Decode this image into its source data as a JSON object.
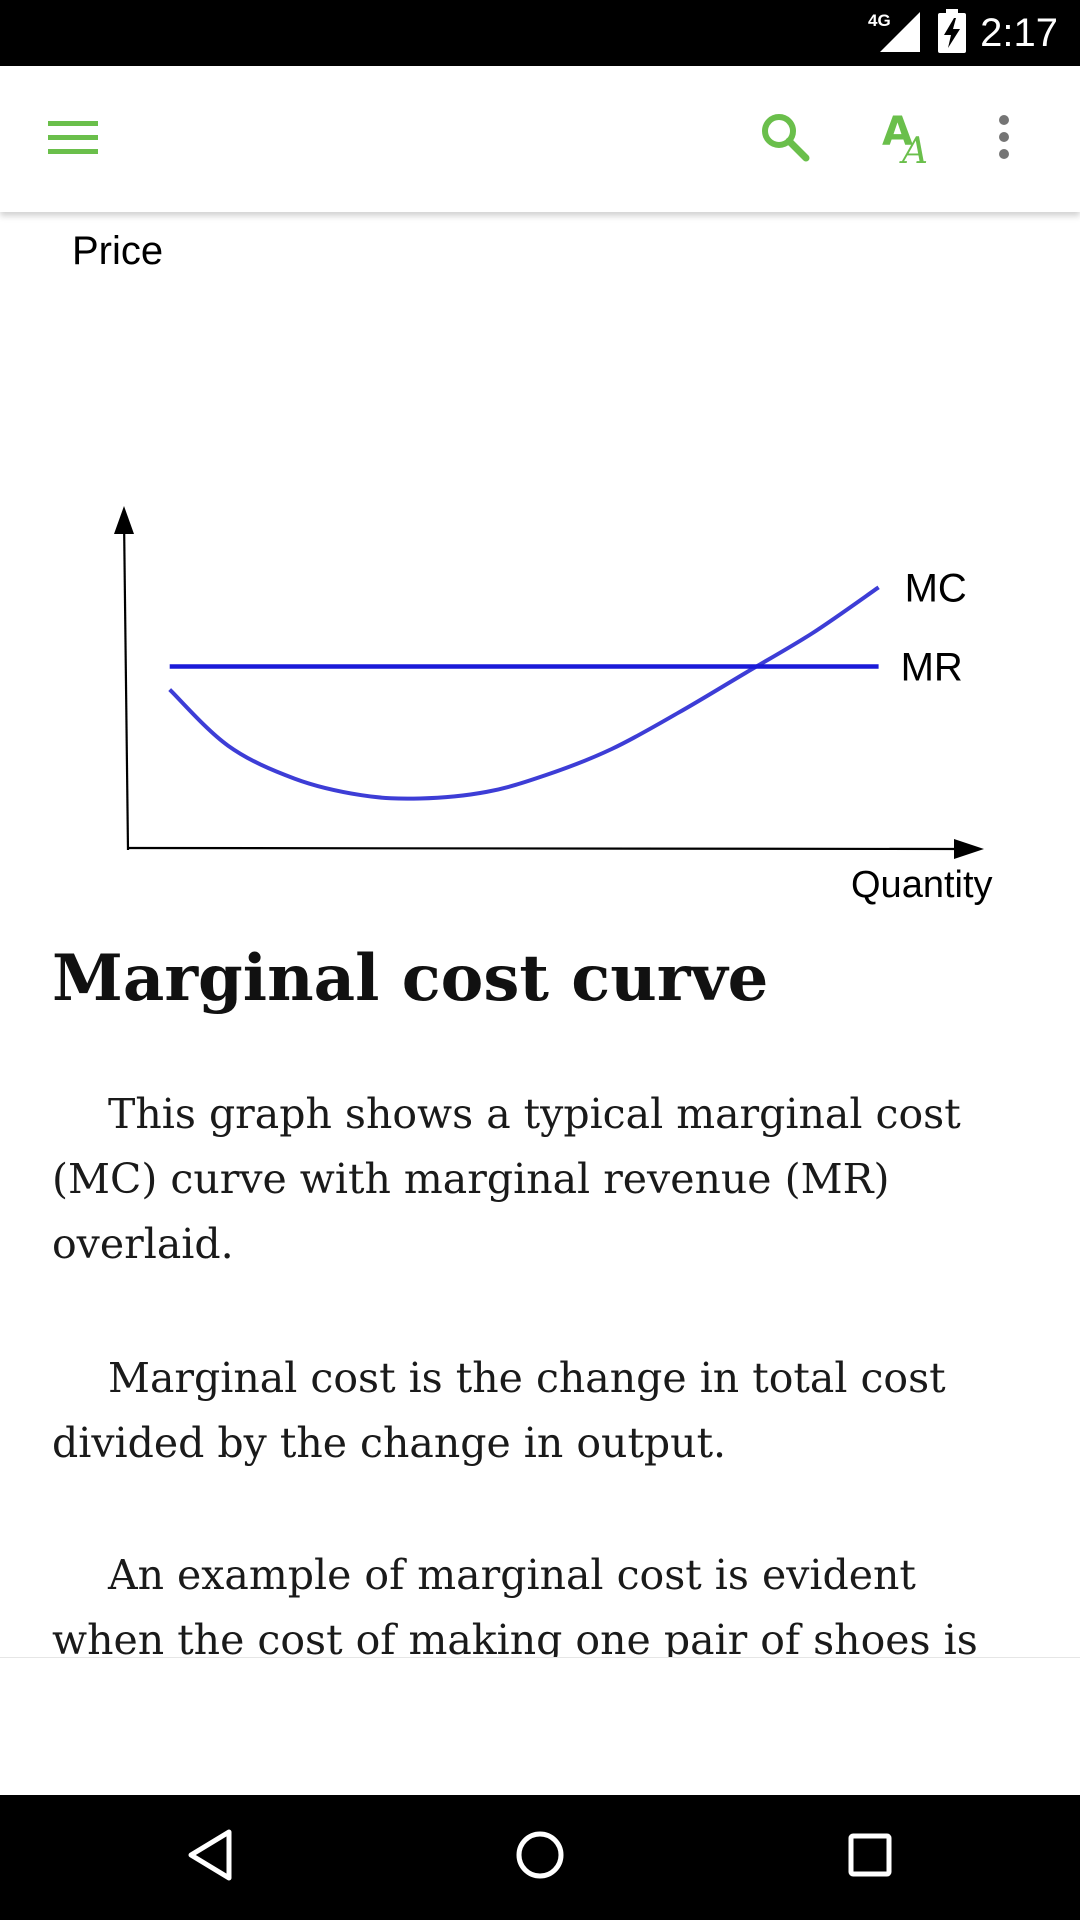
{
  "status_bar": {
    "network": "4G",
    "time": "2:17"
  },
  "app_bar": {
    "menu_icon": "hamburger-menu-icon",
    "search_icon": "search-icon",
    "font_size_icon": "text-size-icon",
    "more_icon": "more-vert-icon",
    "accent_color": "#6abf4b"
  },
  "chart_data": {
    "type": "line",
    "ylabel": "Price",
    "xlabel": "Quantity",
    "grid": false,
    "series": [
      {
        "name": "MC",
        "color": "#3d3dd6",
        "shape": "U-shaped",
        "x": [
          0.05,
          0.12,
          0.2,
          0.28,
          0.35,
          0.43,
          0.5,
          0.58,
          0.66,
          0.74,
          0.82,
          0.9
        ],
        "y": [
          0.48,
          0.31,
          0.21,
          0.16,
          0.15,
          0.17,
          0.22,
          0.3,
          0.41,
          0.53,
          0.65,
          0.79
        ]
      },
      {
        "name": "MR",
        "color": "#1a1ad8",
        "shape": "horizontal",
        "x": [
          0.05,
          0.9
        ],
        "y": [
          0.55,
          0.55
        ]
      }
    ]
  },
  "article": {
    "title": "Marginal cost curve",
    "paragraphs": [
      "This graph shows a typical marginal cost (MC) curve with marginal revenue (MR) overlaid.",
      "Marginal cost is the change in total cost divided by the change in output.",
      "An example of marginal cost is evident when the cost of making one pair of shoes is"
    ]
  },
  "nav_bar": {
    "back_icon": "back-triangle-icon",
    "home_icon": "home-circle-icon",
    "recents_icon": "recents-square-icon"
  }
}
